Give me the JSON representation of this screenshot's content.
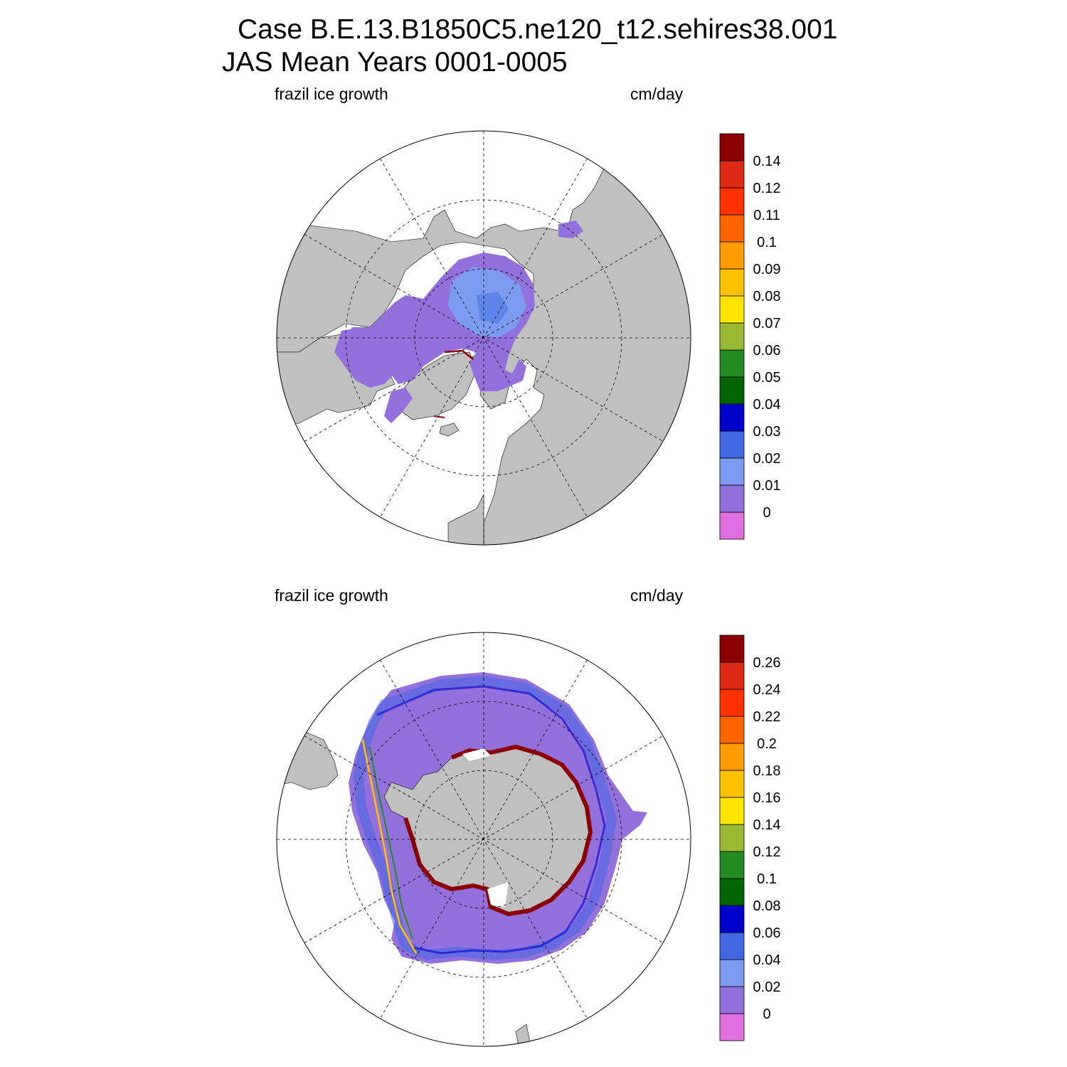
{
  "title": {
    "line1": "Case B.E.13.B1850C5.ne120_t12.sehires38.001",
    "line2": "JAS Mean   Years 0001-0005"
  },
  "panels": [
    {
      "id": "north",
      "field_label": "frazil ice growth",
      "units_label": "cm/day",
      "colorbar": {
        "colors": [
          "#e070e0",
          "#9370db",
          "#7b9cf0",
          "#4169e1",
          "#0000cd",
          "#006400",
          "#228b22",
          "#9aba34",
          "#ffe400",
          "#ffc200",
          "#ff9c00",
          "#ff6400",
          "#ff3300",
          "#dc2a14",
          "#8b0000"
        ],
        "labels": [
          "0",
          "0.01",
          "0.02",
          "0.03",
          "0.04",
          "0.05",
          "0.06",
          "0.07",
          "0.08",
          "0.09",
          "0.1",
          "0.11",
          "0.12",
          "0.14"
        ]
      }
    },
    {
      "id": "south",
      "field_label": "frazil ice growth",
      "units_label": "cm/day",
      "colorbar": {
        "colors": [
          "#e070e0",
          "#9370db",
          "#7b9cf0",
          "#4169e1",
          "#0000cd",
          "#006400",
          "#228b22",
          "#9aba34",
          "#ffe400",
          "#ffc200",
          "#ff9c00",
          "#ff6400",
          "#ff3300",
          "#dc2a14",
          "#8b0000"
        ],
        "labels": [
          "0",
          "0.02",
          "0.04",
          "0.06",
          "0.08",
          "0.1",
          "0.12",
          "0.14",
          "0.16",
          "0.18",
          "0.2",
          "0.22",
          "0.24",
          "0.26"
        ]
      }
    }
  ],
  "map_colors": {
    "land": "#c0c0c0",
    "ocean": "#ffffff",
    "ice_background": "#9370db",
    "ice_light": "#7b9cf0",
    "ice_mid": "#4169e1",
    "ice_dark": "#0000cd",
    "coast_band": "#8b0000"
  }
}
